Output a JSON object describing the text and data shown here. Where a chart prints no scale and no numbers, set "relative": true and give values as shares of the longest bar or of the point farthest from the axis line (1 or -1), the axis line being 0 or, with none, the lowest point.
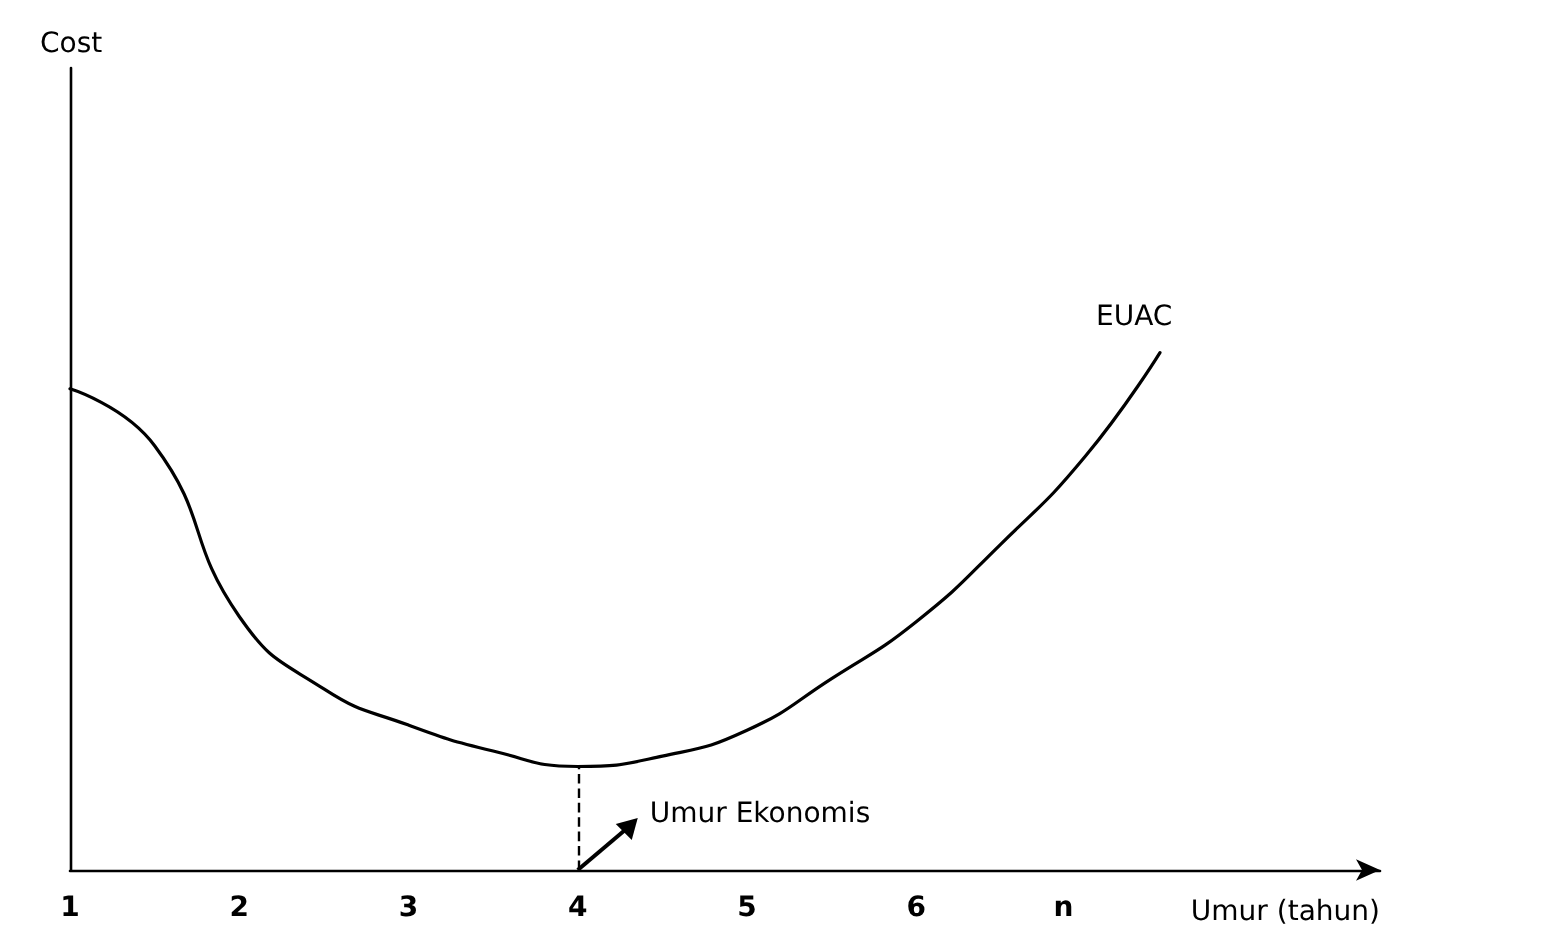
{
  "chart_data": {
    "type": "line",
    "relative": true,
    "xlabel": "Umur (tahun)",
    "x": [
      1,
      1.5,
      2,
      2.5,
      3,
      3.5,
      4,
      4.5,
      5,
      5.5,
      6,
      6.5,
      7,
      7.44
    ],
    "series": [
      {
        "name": "EUAC",
        "color": "#000000",
        "values": [
          0.93,
          0.82,
          0.49,
          0.35,
          0.28,
          0.23,
          0.2,
          0.22,
          0.27,
          0.37,
          0.48,
          0.63,
          0.8,
          1.0
        ]
      }
    ],
    "xlim": [
      1,
      8.74
    ],
    "xticks": [
      1,
      2,
      3,
      4,
      5,
      6,
      {
        "value": 6.87,
        "label": "n"
      }
    ],
    "ref_lines": [
      {
        "axis": "x",
        "value": 4,
        "line_style": "dashed",
        "color": "#000000"
      }
    ],
    "annotations": [
      "Cost",
      {
        "text": "Umur Ekonomis",
        "x": 4,
        "y": 0
      }
    ],
    "marker": "none",
    "line_style": "solid",
    "grid": false,
    "legend": false
  }
}
